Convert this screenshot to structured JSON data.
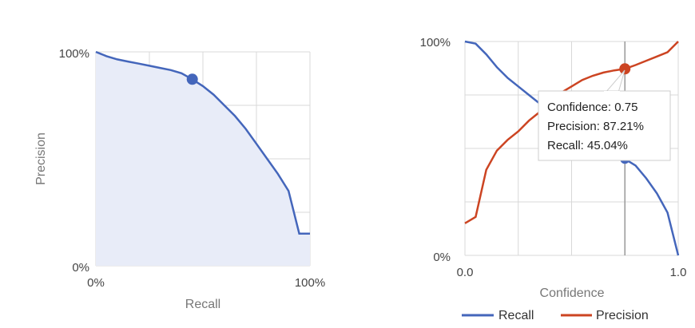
{
  "chart_data": [
    {
      "type": "area",
      "xlabel": "Recall",
      "ylabel": "Precision",
      "xlim": [
        0,
        1
      ],
      "ylim": [
        0,
        1
      ],
      "x_tick_labels": [
        "0%",
        "100%"
      ],
      "y_tick_labels": [
        "0%",
        "100%"
      ],
      "grid": true,
      "line_color": "#4466bb",
      "fill_color": "#e8ecf8",
      "points": [
        [
          0.0,
          1.0
        ],
        [
          0.05,
          0.98
        ],
        [
          0.1,
          0.965
        ],
        [
          0.15,
          0.955
        ],
        [
          0.2,
          0.945
        ],
        [
          0.25,
          0.935
        ],
        [
          0.3,
          0.925
        ],
        [
          0.35,
          0.915
        ],
        [
          0.4,
          0.9
        ],
        [
          0.45,
          0.8721
        ],
        [
          0.5,
          0.84
        ],
        [
          0.55,
          0.8
        ],
        [
          0.6,
          0.75
        ],
        [
          0.65,
          0.7
        ],
        [
          0.7,
          0.64
        ],
        [
          0.75,
          0.57
        ],
        [
          0.8,
          0.5
        ],
        [
          0.85,
          0.43
        ],
        [
          0.9,
          0.35
        ],
        [
          0.95,
          0.15
        ],
        [
          1.0,
          0.15
        ]
      ],
      "highlight": {
        "x": 0.4504,
        "y": 0.8721
      }
    },
    {
      "type": "line",
      "xlabel": "Confidence",
      "ylabel": "",
      "xlim": [
        0,
        1
      ],
      "ylim": [
        0,
        1
      ],
      "x_tick_labels": [
        "0.0",
        "1.0"
      ],
      "y_tick_labels": [
        "0%",
        "100%"
      ],
      "grid": true,
      "legend_position": "bottom",
      "x": [
        0.0,
        0.05,
        0.1,
        0.15,
        0.2,
        0.25,
        0.3,
        0.35,
        0.4,
        0.45,
        0.5,
        0.55,
        0.6,
        0.65,
        0.7,
        0.75,
        0.8,
        0.85,
        0.9,
        0.95,
        1.0
      ],
      "series": [
        {
          "name": "Recall",
          "color": "#4466bb",
          "values": [
            1.0,
            0.99,
            0.94,
            0.88,
            0.83,
            0.79,
            0.75,
            0.71,
            0.68,
            0.65,
            0.61,
            0.57,
            0.53,
            0.5,
            0.47,
            0.4504,
            0.42,
            0.36,
            0.29,
            0.2,
            0.0
          ]
        },
        {
          "name": "Precision",
          "color": "#cc4422",
          "values": [
            0.15,
            0.18,
            0.4,
            0.49,
            0.54,
            0.58,
            0.63,
            0.67,
            0.72,
            0.76,
            0.79,
            0.82,
            0.84,
            0.855,
            0.865,
            0.8721,
            0.89,
            0.91,
            0.93,
            0.95,
            1.0
          ]
        }
      ],
      "tooltip": {
        "confidence_label": "Confidence: 0.75",
        "precision_label": "Precision: 87.21%",
        "recall_label": "Recall: 45.04%"
      },
      "highlight_x": 0.75
    }
  ]
}
